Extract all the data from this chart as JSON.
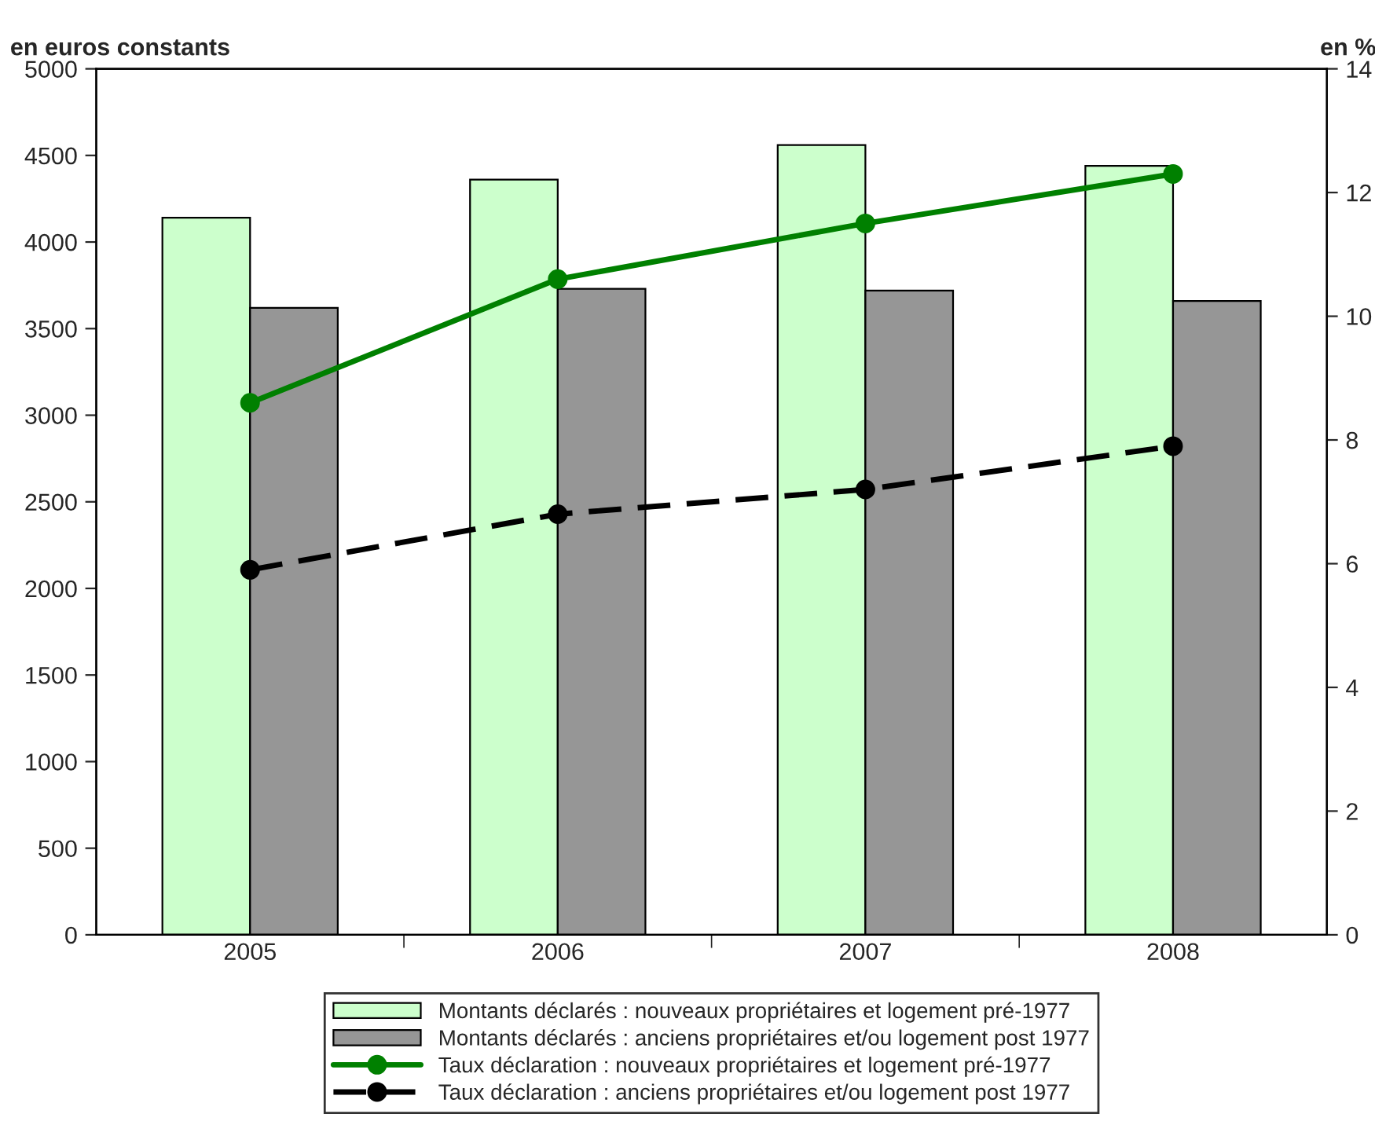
{
  "chart_data": {
    "type": "bar",
    "ylabel": "en euros constants",
    "y2label": "en %",
    "categories": [
      "2005",
      "2006",
      "2007",
      "2008"
    ],
    "series": [
      {
        "name": "Montants déclarés : nouveaux propriétaires et logement pré-1977",
        "color": "#ccffcc",
        "values": [
          4140,
          4360,
          4560,
          4440
        ]
      },
      {
        "name": "Montants déclarés : anciens propriétaires et/ou logement post 1977",
        "color": "#969696",
        "values": [
          3620,
          3730,
          3720,
          3660
        ]
      },
      {
        "name": "Taux déclaration : nouveaux propriétaires et logement pré-1977",
        "type": "line",
        "axis": "y2",
        "color": "#008000",
        "marker": "circle",
        "line_style": "solid",
        "values": [
          8.6,
          10.6,
          11.5,
          12.3
        ]
      },
      {
        "name": "Taux déclaration : anciens propriétaires et/ou logement post 1977",
        "type": "line",
        "axis": "y2",
        "color": "#000000",
        "marker": "circle",
        "line_style": "dashed",
        "values": [
          5.9,
          6.8,
          7.2,
          7.9
        ]
      }
    ],
    "ylim": [
      0,
      5000
    ],
    "yticks": [
      0,
      500,
      1000,
      1500,
      2000,
      2500,
      3000,
      3500,
      4000,
      4500,
      5000
    ],
    "y2lim": [
      0,
      14
    ],
    "y2ticks": [
      0,
      2,
      4,
      6,
      8,
      10,
      12,
      14
    ],
    "grid": false,
    "legend": "bottom"
  }
}
